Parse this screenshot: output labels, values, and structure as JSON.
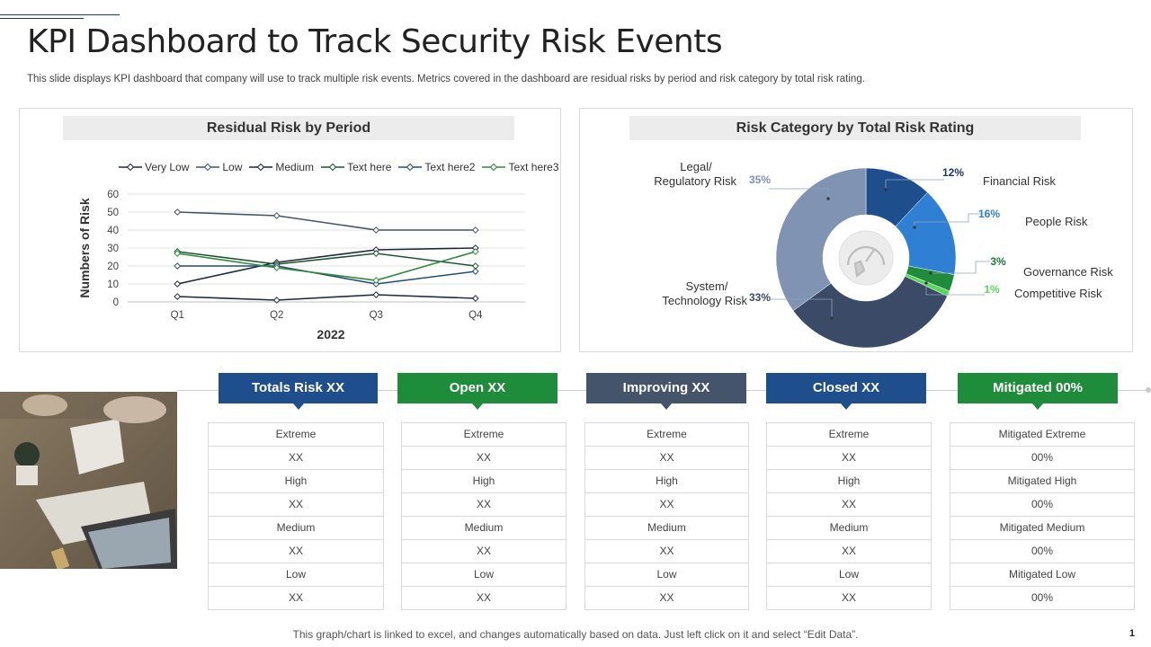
{
  "page": {
    "title": "KPI Dashboard to Track Security Risk Events",
    "subtitle": "This slide displays KPI dashboard that company will use to track multiple risk events. Metrics covered in the dashboard are residual risks by period and risk category by total risk rating.",
    "footer": "This graph/chart is linked to excel, and changes automatically based on data. Just left click on it and select “Edit Data”.",
    "page_number": "1"
  },
  "chart_data": [
    {
      "type": "line",
      "title": "Residual Risk by Period",
      "categories": [
        "Q1",
        "Q2",
        "Q3",
        "Q4"
      ],
      "xlabel": "2022",
      "ylabel": "Numbers of Risk",
      "ylim": [
        0,
        60
      ],
      "yticks": [
        0,
        10,
        20,
        30,
        40,
        50,
        60
      ],
      "grid": true,
      "legend_position": "top",
      "series": [
        {
          "name": "Very Low",
          "values": [
            3,
            1,
            4,
            2
          ],
          "color": "#1f2a44"
        },
        {
          "name": "Low",
          "values": [
            50,
            48,
            40,
            40
          ],
          "color": "#44546a"
        },
        {
          "name": "Medium",
          "values": [
            10,
            22,
            29,
            30
          ],
          "color": "#1a2a3a"
        },
        {
          "name": "Text here",
          "values": [
            28,
            21,
            27,
            20
          ],
          "color": "#1e5631"
        },
        {
          "name": "Text here2",
          "values": [
            20,
            20,
            10,
            17
          ],
          "color": "#1f4e79"
        },
        {
          "name": "Text here3",
          "values": [
            27,
            19,
            12,
            28
          ],
          "color": "#2e8b3e"
        }
      ]
    },
    {
      "type": "pie",
      "title": "Risk Category by Total Risk Rating",
      "donut": true,
      "slices": [
        {
          "label": "Financial Risk",
          "value": 12,
          "pct_label": "12%",
          "color": "#1f4e8c",
          "pct_color": "#1f3864"
        },
        {
          "label": "People Risk",
          "value": 16,
          "pct_label": "16%",
          "color": "#2f80d4",
          "pct_color": "#2f80d4"
        },
        {
          "label": "Governance  Risk",
          "value": 3,
          "pct_label": "3%",
          "color": "#1e8c3a",
          "pct_color": "#1e7a32"
        },
        {
          "label": "Competitive Risk",
          "value": 1,
          "pct_label": "1%",
          "color": "#5cd65c",
          "pct_color": "#5cd65c"
        },
        {
          "label": "System/ Technology Risk",
          "label_lines": [
            "System/",
            "Technology Risk"
          ],
          "value": 33,
          "pct_label": "33%",
          "color": "#3b4a66",
          "pct_color": "#3b4a66"
        },
        {
          "label": "Legal/ Regulatory Risk",
          "label_lines": [
            "Legal/",
            "Regulatory Risk"
          ],
          "value": 35,
          "pct_label": "35%",
          "color": "#8093b3",
          "pct_color": "#8093b3"
        }
      ]
    }
  ],
  "cards": [
    {
      "title": "Totals Risk XX",
      "color": "#1f4e8c",
      "rows": [
        "Extreme",
        "XX",
        "High",
        "XX",
        "Medium",
        "XX",
        "Low",
        "XX"
      ]
    },
    {
      "title": "Open XX",
      "color": "#1e8c3a",
      "rows": [
        "Extreme",
        "XX",
        "High",
        "XX",
        "Medium",
        "XX",
        "Low",
        "XX"
      ]
    },
    {
      "title": "Improving XX",
      "color": "#44546a",
      "rows": [
        "Extreme",
        "XX",
        "High",
        "XX",
        "Medium",
        "XX",
        "Low",
        "XX"
      ]
    },
    {
      "title": "Closed XX",
      "color": "#1f4e8c",
      "rows": [
        "Extreme",
        "XX",
        "High",
        "XX",
        "Medium",
        "XX",
        "Low",
        "XX"
      ]
    },
    {
      "title": "Mitigated 00%",
      "color": "#1e8c3a",
      "rows": [
        "Mitigated Extreme",
        "00%",
        "Mitigated High",
        "00%",
        "Mitigated Medium",
        "00%",
        "Mitigated Low",
        "00%"
      ]
    }
  ]
}
